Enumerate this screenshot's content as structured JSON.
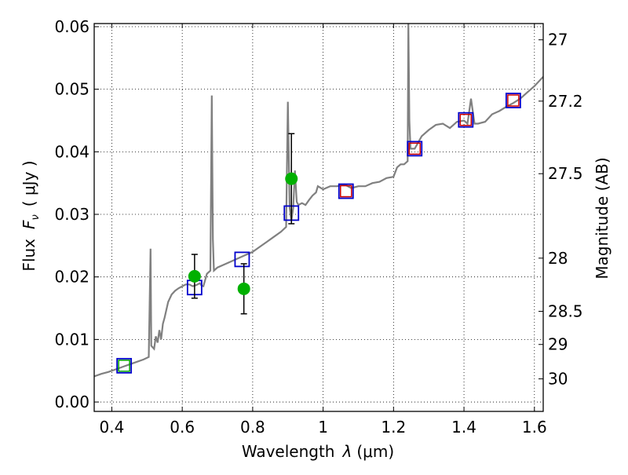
{
  "chart_data": {
    "type": "line",
    "xlabel_prefix": "Wavelength",
    "xlabel_symbol": "λ",
    "xlabel_unit": "(μm)",
    "ylabel_prefix": "Flux",
    "ylabel_symbol": "F",
    "ylabel_subscript": "ν",
    "ylabel_unit": "( μJy )",
    "y2label": "Magnitude (AB)",
    "xlim": [
      0.35,
      1.625
    ],
    "ylim": [
      -0.0015,
      0.0605
    ],
    "grid": true,
    "xticks": [
      0.4,
      0.6,
      0.8,
      1.0,
      1.2,
      1.4,
      1.6
    ],
    "xtick_labels": [
      "0.4",
      "0.6",
      "0.8",
      "1",
      "1.2",
      "1.4",
      "1.6"
    ],
    "yticks": [
      0.0,
      0.01,
      0.02,
      0.03,
      0.04,
      0.05,
      0.06
    ],
    "ytick_labels": [
      "0.00",
      "0.01",
      "0.02",
      "0.03",
      "0.04",
      "0.05",
      "0.06"
    ],
    "y2ticks": [
      {
        "label": "27",
        "flux": 0.0579
      },
      {
        "label": "27.2",
        "flux": 0.0481
      },
      {
        "label": "27.5",
        "flux": 0.0365
      },
      {
        "label": "28",
        "flux": 0.023
      },
      {
        "label": "28.5",
        "flux": 0.0145
      },
      {
        "label": "29",
        "flux": 0.0092
      },
      {
        "label": "30",
        "flux": 0.0037
      }
    ],
    "colors": {
      "model": "#808080",
      "model_photometry": "#0000cc",
      "observed": "#00b000",
      "inner_box_green": "#00a000",
      "inner_box_red": "#cc0000",
      "errorbar": "#000000"
    },
    "series": [
      {
        "kind": "model_spectrum",
        "x": [
          0.35,
          0.37,
          0.39,
          0.41,
          0.43,
          0.45,
          0.47,
          0.49,
          0.505,
          0.51,
          0.512,
          0.515,
          0.52,
          0.525,
          0.53,
          0.535,
          0.54,
          0.545,
          0.55,
          0.56,
          0.57,
          0.58,
          0.59,
          0.6,
          0.61,
          0.62,
          0.63,
          0.64,
          0.65,
          0.655,
          0.66,
          0.67,
          0.68,
          0.684,
          0.687,
          0.69,
          0.7,
          0.72,
          0.74,
          0.76,
          0.78,
          0.8,
          0.82,
          0.84,
          0.86,
          0.88,
          0.895,
          0.9,
          0.905,
          0.91,
          0.915,
          0.92,
          0.925,
          0.93,
          0.94,
          0.95,
          0.96,
          0.97,
          0.98,
          0.985,
          1.0,
          1.02,
          1.04,
          1.06,
          1.08,
          1.1,
          1.12,
          1.14,
          1.16,
          1.18,
          1.2,
          1.21,
          1.22,
          1.23,
          1.24,
          1.242,
          1.245,
          1.248,
          1.25,
          1.26,
          1.28,
          1.3,
          1.32,
          1.34,
          1.36,
          1.38,
          1.4,
          1.41,
          1.42,
          1.43,
          1.44,
          1.46,
          1.48,
          1.5,
          1.52,
          1.54,
          1.56,
          1.58,
          1.6,
          1.625
        ],
        "y": [
          0.0041,
          0.0045,
          0.0048,
          0.0052,
          0.0056,
          0.006,
          0.0064,
          0.0068,
          0.0072,
          0.0245,
          0.009,
          0.0088,
          0.0085,
          0.0105,
          0.0095,
          0.0115,
          0.01,
          0.0125,
          0.0135,
          0.016,
          0.0172,
          0.0178,
          0.0182,
          0.0185,
          0.0188,
          0.0188,
          0.0185,
          0.0187,
          0.019,
          0.0186,
          0.0185,
          0.0205,
          0.021,
          0.049,
          0.026,
          0.021,
          0.0215,
          0.022,
          0.0225,
          0.023,
          0.0235,
          0.024,
          0.0248,
          0.0256,
          0.0264,
          0.0272,
          0.028,
          0.048,
          0.031,
          0.029,
          0.031,
          0.037,
          0.032,
          0.0315,
          0.0318,
          0.0315,
          0.0323,
          0.033,
          0.0335,
          0.0345,
          0.034,
          0.0345,
          0.0345,
          0.0348,
          0.0342,
          0.0345,
          0.0345,
          0.035,
          0.0352,
          0.0358,
          0.036,
          0.0375,
          0.038,
          0.038,
          0.0385,
          0.0605,
          0.045,
          0.0405,
          0.0405,
          0.0405,
          0.0425,
          0.0435,
          0.0443,
          0.0445,
          0.0438,
          0.0448,
          0.045,
          0.0445,
          0.0485,
          0.0445,
          0.0445,
          0.0448,
          0.046,
          0.0465,
          0.0472,
          0.0478,
          0.0485,
          0.0495,
          0.0505,
          0.052
        ]
      },
      {
        "kind": "model_photometry",
        "x": [
          0.435,
          0.635,
          0.77,
          0.91,
          1.065,
          1.26,
          1.405,
          1.54
        ],
        "y": [
          0.0058,
          0.0183,
          0.0228,
          0.0302,
          0.0337,
          0.0405,
          0.0451,
          0.0482
        ],
        "inner_color": [
          "green",
          "none",
          "none",
          "none",
          "red",
          "red",
          "red",
          "red"
        ]
      },
      {
        "kind": "observed",
        "x": [
          0.635,
          0.775,
          0.91
        ],
        "y": [
          0.0201,
          0.0181,
          0.0357
        ],
        "yerr": [
          0.0035,
          0.004,
          0.0072
        ]
      }
    ]
  }
}
